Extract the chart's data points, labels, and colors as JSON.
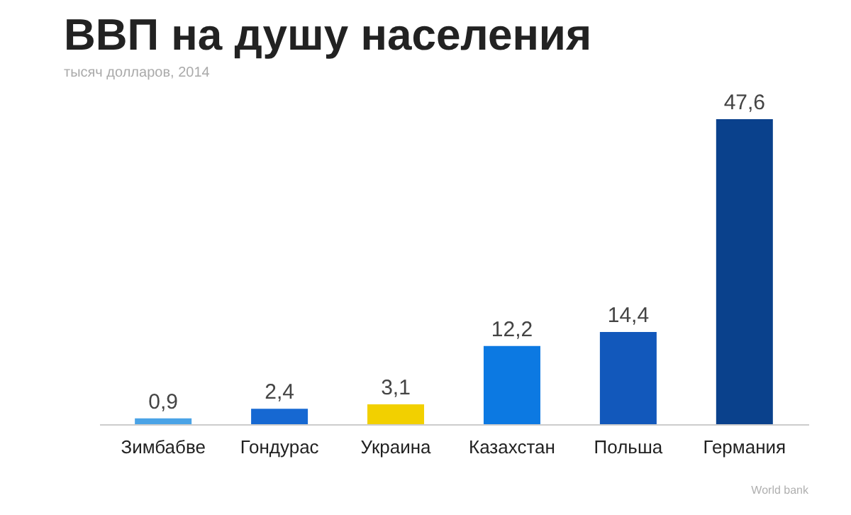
{
  "chart_data": {
    "type": "bar",
    "title": "ВВП на душу населения",
    "subtitle": "тысяч долларов, 2014",
    "categories": [
      "Зимбабве",
      "Гондурас",
      "Украина",
      "Казахстан",
      "Польша",
      "Германия"
    ],
    "values": [
      0.9,
      2.4,
      3.1,
      12.2,
      14.4,
      47.6
    ],
    "colors": [
      "#4aa3e6",
      "#1668d2",
      "#f2d000",
      "#0c79e2",
      "#1258bb",
      "#0a418c"
    ],
    "value_labels": [
      "0,9",
      "2,4",
      "3,1",
      "12,2",
      "14,4",
      "47,6"
    ],
    "annotations": [
      "World bank"
    ]
  }
}
